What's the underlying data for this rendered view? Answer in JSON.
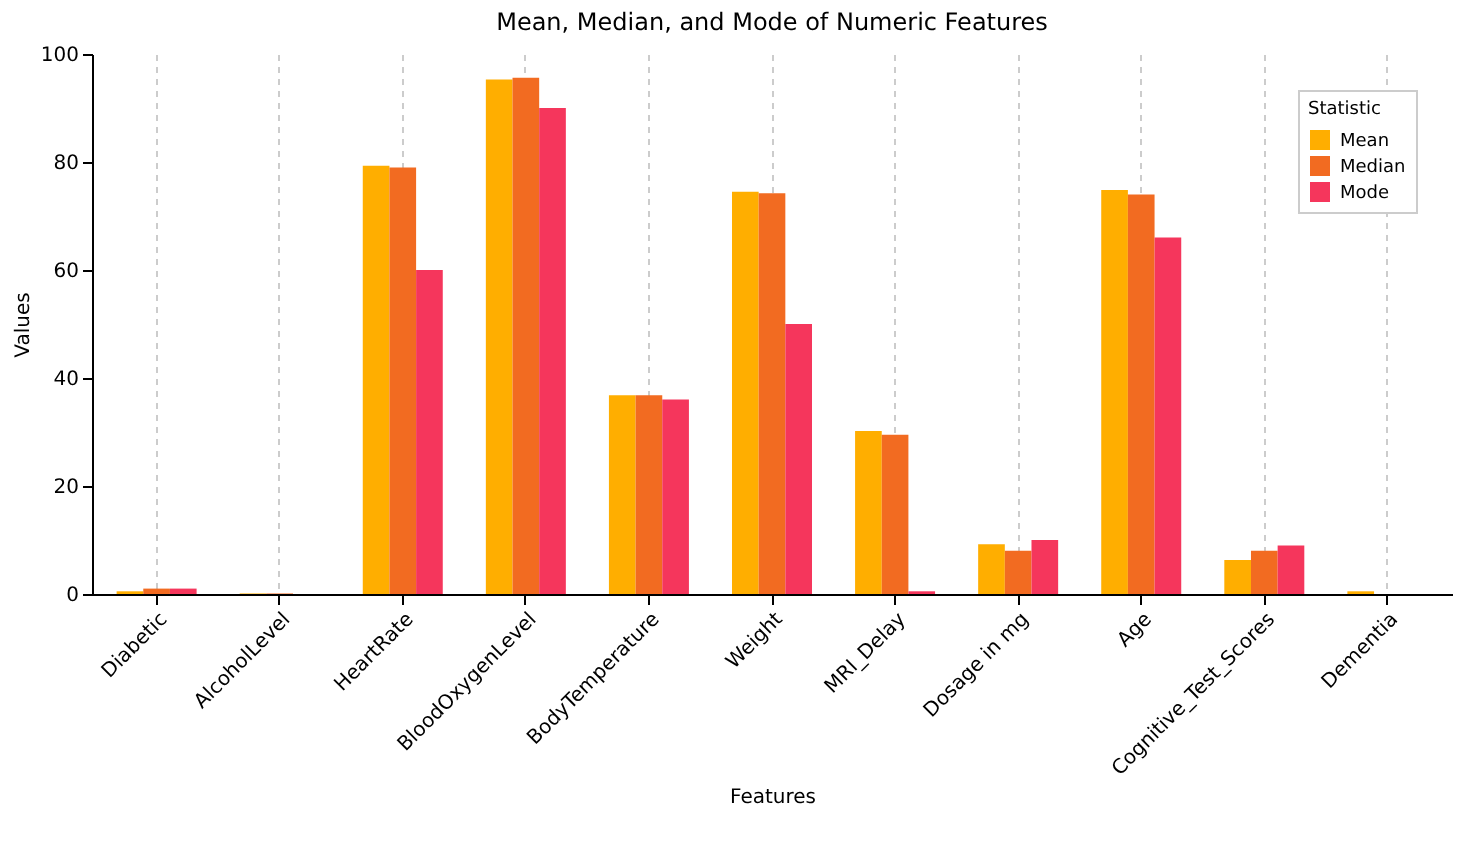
{
  "chart_data": {
    "type": "bar",
    "title": "Mean, Median, and Mode of Numeric Features",
    "xlabel": "Features",
    "ylabel": "Values",
    "legend_title": "Statistic",
    "categories": [
      "Diabetic",
      "AlcoholLevel",
      "HeartRate",
      "BloodOxygenLevel",
      "BodyTemperature",
      "Weight",
      "MRI_Delay",
      "Dosage in mg",
      "Age",
      "Cognitive_Test_Scores",
      "Dementia"
    ],
    "series": [
      {
        "name": "Mean",
        "color": "#ffae00",
        "values": [
          0.5,
          0.1,
          79.3,
          95.3,
          36.8,
          74.5,
          30.2,
          9.2,
          74.8,
          6.3,
          0.5
        ]
      },
      {
        "name": "Median",
        "color": "#f26b21",
        "values": [
          1,
          0.1,
          79,
          95.6,
          36.8,
          74.2,
          29.5,
          8,
          74,
          8,
          0
        ]
      },
      {
        "name": "Mode",
        "color": "#f5365c",
        "values": [
          1,
          0,
          60,
          90,
          36,
          50,
          0.5,
          10,
          66,
          9,
          0
        ]
      }
    ],
    "ylim": [
      0,
      100
    ],
    "yticks": [
      0,
      20,
      40,
      60,
      80,
      100
    ],
    "grid": "x",
    "legend": "top right"
  }
}
